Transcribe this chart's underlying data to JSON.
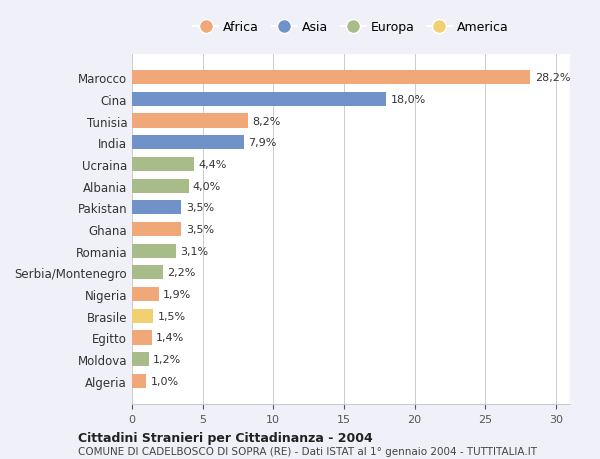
{
  "categories": [
    "Marocco",
    "Cina",
    "Tunisia",
    "India",
    "Ucraina",
    "Albania",
    "Pakistan",
    "Ghana",
    "Romania",
    "Serbia/Montenegro",
    "Nigeria",
    "Brasile",
    "Egitto",
    "Moldova",
    "Algeria"
  ],
  "values": [
    28.2,
    18.0,
    8.2,
    7.9,
    4.4,
    4.0,
    3.5,
    3.5,
    3.1,
    2.2,
    1.9,
    1.5,
    1.4,
    1.2,
    1.0
  ],
  "labels": [
    "28,2%",
    "18,0%",
    "8,2%",
    "7,9%",
    "4,4%",
    "4,0%",
    "3,5%",
    "3,5%",
    "3,1%",
    "2,2%",
    "1,9%",
    "1,5%",
    "1,4%",
    "1,2%",
    "1,0%"
  ],
  "continents": [
    "Africa",
    "Asia",
    "Africa",
    "Asia",
    "Europa",
    "Europa",
    "Asia",
    "Africa",
    "Europa",
    "Europa",
    "Africa",
    "America",
    "Africa",
    "Europa",
    "Africa"
  ],
  "colors": {
    "Africa": "#F0A878",
    "Asia": "#6F93C8",
    "Europa": "#A8BC8A",
    "America": "#F0D070"
  },
  "legend_order": [
    "Africa",
    "Asia",
    "Europa",
    "America"
  ],
  "title1": "Cittadini Stranieri per Cittadinanza - 2004",
  "title2": "COMUNE DI CADELBOSCO DI SOPRA (RE) - Dati ISTAT al 1° gennaio 2004 - TUTTITALIA.IT",
  "xlim": [
    0,
    31
  ],
  "xticks": [
    0,
    5,
    10,
    15,
    20,
    25,
    30
  ],
  "background_color": "#f0f0f8",
  "bar_background": "#ffffff"
}
